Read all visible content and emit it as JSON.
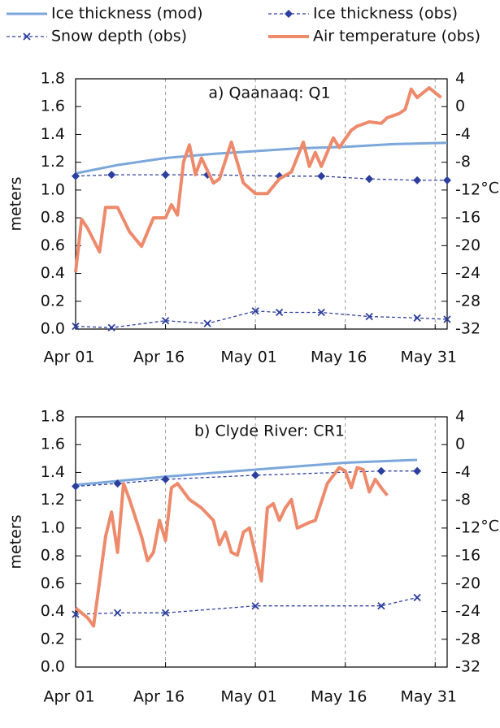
{
  "chart_data": [
    {
      "type": "line",
      "title": "a) Qaanaaq: Q1",
      "ylabel": "meters",
      "y2label": "°C",
      "xlim": [
        "Apr 01",
        "Jun 02"
      ],
      "xticks": [
        "Apr 01",
        "Apr 16",
        "May 01",
        "May 16",
        "May 31"
      ],
      "ylim": [
        0,
        1.8
      ],
      "yticks": [
        {
          "value": 0,
          "label": "0.0"
        },
        0.2,
        0.4,
        0.6,
        0.8,
        {
          "value": 1,
          "label": "1.0"
        },
        1.2,
        1.4,
        1.6,
        1.8
      ],
      "y2lim": [
        -32,
        4
      ],
      "y2ticks": [
        -32,
        -28,
        -24,
        -20,
        -16,
        -12,
        -8,
        -4,
        0,
        4
      ],
      "grid": "x",
      "series": [
        {
          "name": "Ice thickness (mod)",
          "color": "#7ba7da",
          "width": 3,
          "dash": false,
          "marker": "none",
          "x": [
            "Apr 01",
            "Apr 08",
            "Apr 16",
            "Apr 24",
            "May 01",
            "May 08",
            "May 16",
            "May 24",
            "Jun 02"
          ],
          "values": [
            1.12,
            1.18,
            1.23,
            1.26,
            1.28,
            1.3,
            1.31,
            1.33,
            1.34
          ]
        },
        {
          "name": "Ice thickness (obs)",
          "color": "#2d3f9e",
          "width": 1.3,
          "dash": true,
          "marker": "diamond",
          "x": [
            "Apr 01",
            "Apr 07",
            "Apr 16",
            "Apr 23",
            "May 05",
            "May 12",
            "May 20",
            "May 28",
            "Jun 02"
          ],
          "values": [
            1.1,
            1.11,
            1.11,
            1.11,
            1.1,
            1.1,
            1.08,
            1.07,
            1.07
          ]
        },
        {
          "name": "Snow depth (obs)",
          "color": "#2d3f9e",
          "width": 1.3,
          "dash": true,
          "marker": "x",
          "x": [
            "Apr 01",
            "Apr 07",
            "Apr 16",
            "Apr 23",
            "May 01",
            "May 05",
            "May 12",
            "May 20",
            "May 28",
            "Jun 02"
          ],
          "values": [
            0.02,
            0.01,
            0.06,
            0.04,
            0.13,
            0.12,
            0.12,
            0.09,
            0.08,
            0.07
          ]
        },
        {
          "name": "Air temperature (obs)",
          "color": "#ee8a6c",
          "width": 4,
          "dash": false,
          "marker": "none",
          "axis": "y2",
          "x": [
            "Apr 01",
            "Apr 02",
            "Apr 03",
            "Apr 05",
            "Apr 06",
            "Apr 08",
            "Apr 10",
            "Apr 12",
            "Apr 14",
            "Apr 16",
            "Apr 17",
            "Apr 18",
            "Apr 19",
            "Apr 20",
            "Apr 21",
            "Apr 22",
            "Apr 24",
            "Apr 25",
            "Apr 27",
            "Apr 29",
            "May 01",
            "May 03",
            "May 05",
            "May 07",
            "May 09",
            "May 10",
            "May 11",
            "May 12",
            "May 14",
            "May 15",
            "May 17",
            "May 18",
            "May 20",
            "May 22",
            "May 23",
            "May 25",
            "May 26",
            "May 27",
            "May 28",
            "May 30",
            "Jun 01"
          ],
          "values": [
            -23.8,
            -16.2,
            -17.5,
            -20.9,
            -14.5,
            -14.5,
            -18.0,
            -20.1,
            -16.0,
            -16.0,
            -14.1,
            -15.6,
            -8.0,
            -5.5,
            -9.8,
            -7.4,
            -11.0,
            -10.4,
            -5.1,
            -11.0,
            -12.5,
            -12.5,
            -10.4,
            -9.4,
            -5.1,
            -8.6,
            -6.6,
            -8.6,
            -4.5,
            -5.9,
            -3.4,
            -2.8,
            -2.2,
            -2.4,
            -1.6,
            -1.0,
            -0.4,
            2.5,
            1.3,
            2.7,
            1.3
          ]
        }
      ]
    },
    {
      "type": "line",
      "title": "b) Clyde River: CR1",
      "ylabel": "meters",
      "y2label": "°C",
      "xlim": [
        "Apr 01",
        "Jun 02"
      ],
      "xticks": [
        "Apr 01",
        "Apr 16",
        "May 01",
        "May 16",
        "May 31"
      ],
      "ylim": [
        0,
        1.8
      ],
      "yticks": [
        {
          "value": 0,
          "label": "0.0"
        },
        0.2,
        0.4,
        0.6,
        0.8,
        {
          "value": 1,
          "label": "1.0"
        },
        1.2,
        1.4,
        1.6,
        1.8
      ],
      "y2lim": [
        -32,
        4
      ],
      "y2ticks": [
        -32,
        -28,
        -24,
        -20,
        -16,
        -12,
        -8,
        -4,
        0,
        4
      ],
      "grid": "x",
      "series": [
        {
          "name": "Ice thickness (mod)",
          "color": "#7ba7da",
          "width": 3,
          "dash": false,
          "marker": "none",
          "x": [
            "Apr 01",
            "Apr 16",
            "May 01",
            "May 16",
            "May 28"
          ],
          "values": [
            1.31,
            1.37,
            1.42,
            1.47,
            1.49
          ]
        },
        {
          "name": "Ice thickness (obs)",
          "color": "#2d3f9e",
          "width": 1.3,
          "dash": true,
          "marker": "diamond",
          "x": [
            "Apr 01",
            "Apr 08",
            "Apr 16",
            "May 01",
            "May 22",
            "May 28"
          ],
          "values": [
            1.3,
            1.32,
            1.35,
            1.38,
            1.41,
            1.41
          ]
        },
        {
          "name": "Snow depth (obs)",
          "color": "#2d3f9e",
          "width": 1.3,
          "dash": true,
          "marker": "x",
          "x": [
            "Apr 01",
            "Apr 08",
            "Apr 16",
            "May 01",
            "May 22",
            "May 28"
          ],
          "values": [
            0.38,
            0.39,
            0.39,
            0.44,
            0.44,
            0.5
          ]
        },
        {
          "name": "Air temperature (obs)",
          "color": "#ee8a6c",
          "width": 4,
          "dash": false,
          "marker": "none",
          "axis": "y2",
          "x": [
            "Apr 01",
            "Apr 03",
            "Apr 04",
            "Apr 06",
            "Apr 07",
            "Apr 08",
            "Apr 09",
            "Apr 10",
            "Apr 12",
            "Apr 13",
            "Apr 14",
            "Apr 15",
            "Apr 16",
            "Apr 17",
            "Apr 18",
            "Apr 20",
            "Apr 22",
            "Apr 24",
            "Apr 25",
            "Apr 26",
            "Apr 27",
            "Apr 28",
            "Apr 29",
            "Apr 30",
            "May 02",
            "May 03",
            "May 04",
            "May 05",
            "May 06",
            "May 07",
            "May 08",
            "May 10",
            "May 11",
            "May 13",
            "May 15",
            "May 16",
            "May 17",
            "May 18",
            "May 19",
            "May 20",
            "May 21",
            "May 22",
            "May 23"
          ],
          "values": [
            -23.5,
            -24.9,
            -26.1,
            -13.2,
            -9.7,
            -15.5,
            -5.6,
            -7.9,
            -13.2,
            -16.7,
            -15.5,
            -10.9,
            -13.8,
            -6.2,
            -5.6,
            -7.9,
            -9.1,
            -10.9,
            -14.4,
            -12.6,
            -15.5,
            -15.9,
            -12.6,
            -12.0,
            -19.6,
            -9.1,
            -8.5,
            -10.9,
            -9.1,
            -7.9,
            -12.0,
            -11.2,
            -10.9,
            -5.6,
            -3.3,
            -3.8,
            -6.2,
            -3.3,
            -3.6,
            -6.8,
            -5.0,
            -6.2,
            -7.3
          ]
        }
      ]
    }
  ]
}
